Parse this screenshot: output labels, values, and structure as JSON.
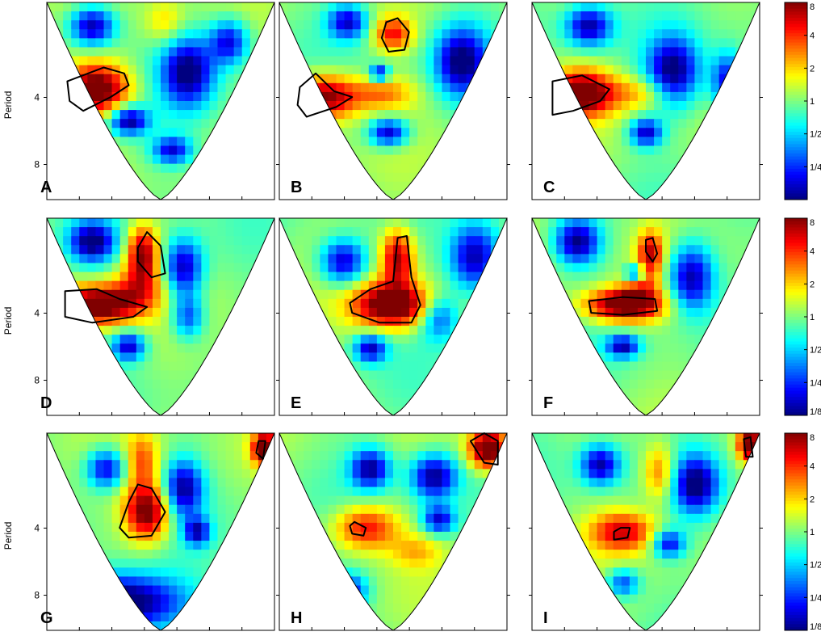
{
  "chart_data": {
    "type": "heatmap",
    "description_of_layout": "",
    "ylabel": "Period",
    "y_ticks": [
      "4",
      "8"
    ],
    "y_scale": "log2",
    "y_range": [
      1.5,
      11.5
    ],
    "colorbar": {
      "scale": "log2",
      "range": [
        0.125,
        8
      ],
      "ticks_full": [
        "1/8",
        "1/4",
        "1/2",
        "1",
        "2",
        "4",
        "8"
      ],
      "ticks_top_row": [
        "1/4",
        "1/2",
        "1",
        "2",
        "4",
        "8"
      ],
      "colormap": "jet"
    },
    "panels": [
      {
        "label": "A",
        "blobs": [
          {
            "x": 0.22,
            "y": 0.44,
            "sx": 0.1,
            "sy": 0.09,
            "v": 3.6
          },
          {
            "x": 0.52,
            "y": 0.1,
            "sx": 0.06,
            "sy": 0.08,
            "v": 1.0
          },
          {
            "x": 0.36,
            "y": 0.6,
            "sx": 0.06,
            "sy": 0.05,
            "v": -3.0
          },
          {
            "x": 0.62,
            "y": 0.35,
            "sx": 0.08,
            "sy": 0.12,
            "v": -3.0
          },
          {
            "x": 0.2,
            "y": 0.12,
            "sx": 0.07,
            "sy": 0.07,
            "v": -3.0
          },
          {
            "x": 0.8,
            "y": 0.2,
            "sx": 0.06,
            "sy": 0.08,
            "v": -2.5
          },
          {
            "x": 0.55,
            "y": 0.75,
            "sx": 0.06,
            "sy": 0.05,
            "v": -2.4
          }
        ],
        "contours": [
          [
            [
              0.09,
              0.4
            ],
            [
              0.25,
              0.33
            ],
            [
              0.34,
              0.36
            ],
            [
              0.36,
              0.42
            ],
            [
              0.28,
              0.48
            ],
            [
              0.16,
              0.55
            ],
            [
              0.1,
              0.5
            ]
          ]
        ]
      },
      {
        "label": "B",
        "blobs": [
          {
            "x": 0.2,
            "y": 0.48,
            "sx": 0.1,
            "sy": 0.08,
            "v": 3.2
          },
          {
            "x": 0.5,
            "y": 0.16,
            "sx": 0.06,
            "sy": 0.06,
            "v": 2.2
          },
          {
            "x": 0.45,
            "y": 0.46,
            "sx": 0.1,
            "sy": 0.06,
            "v": 1.5
          },
          {
            "x": 0.8,
            "y": 0.3,
            "sx": 0.08,
            "sy": 0.12,
            "v": -3.0
          },
          {
            "x": 0.48,
            "y": 0.66,
            "sx": 0.06,
            "sy": 0.05,
            "v": -2.8
          },
          {
            "x": 0.3,
            "y": 0.1,
            "sx": 0.06,
            "sy": 0.06,
            "v": -2.5
          },
          {
            "x": 0.44,
            "y": 0.36,
            "sx": 0.03,
            "sy": 0.03,
            "v": -2.6
          }
        ],
        "contours": [
          [
            [
              0.09,
              0.43
            ],
            [
              0.16,
              0.36
            ],
            [
              0.24,
              0.45
            ],
            [
              0.32,
              0.48
            ],
            [
              0.25,
              0.53
            ],
            [
              0.12,
              0.58
            ],
            [
              0.08,
              0.52
            ]
          ],
          [
            [
              0.45,
              0.18
            ],
            [
              0.47,
              0.1
            ],
            [
              0.52,
              0.08
            ],
            [
              0.57,
              0.15
            ],
            [
              0.55,
              0.24
            ],
            [
              0.48,
              0.25
            ]
          ]
        ]
      },
      {
        "label": "C",
        "blobs": [
          {
            "x": 0.22,
            "y": 0.46,
            "sx": 0.1,
            "sy": 0.08,
            "v": 3.5
          },
          {
            "x": 0.48,
            "y": 0.46,
            "sx": 0.1,
            "sy": 0.06,
            "v": 1.2
          },
          {
            "x": 0.62,
            "y": 0.35,
            "sx": 0.08,
            "sy": 0.12,
            "v": -3.0
          },
          {
            "x": 0.5,
            "y": 0.66,
            "sx": 0.05,
            "sy": 0.05,
            "v": -2.6
          },
          {
            "x": 0.25,
            "y": 0.12,
            "sx": 0.07,
            "sy": 0.07,
            "v": -2.8
          },
          {
            "x": 0.86,
            "y": 0.4,
            "sx": 0.05,
            "sy": 0.1,
            "v": -2.5
          }
        ],
        "contours": [
          [
            [
              0.09,
              0.4
            ],
            [
              0.22,
              0.37
            ],
            [
              0.34,
              0.44
            ],
            [
              0.3,
              0.5
            ],
            [
              0.18,
              0.55
            ],
            [
              0.09,
              0.57
            ]
          ]
        ]
      },
      {
        "label": "D",
        "blobs": [
          {
            "x": 0.22,
            "y": 0.44,
            "sx": 0.12,
            "sy": 0.07,
            "v": 3.6
          },
          {
            "x": 0.42,
            "y": 0.18,
            "sx": 0.05,
            "sy": 0.1,
            "v": 3.0
          },
          {
            "x": 0.4,
            "y": 0.36,
            "sx": 0.08,
            "sy": 0.08,
            "v": 1.5
          },
          {
            "x": 0.2,
            "y": 0.12,
            "sx": 0.07,
            "sy": 0.07,
            "v": -3.0
          },
          {
            "x": 0.6,
            "y": 0.25,
            "sx": 0.06,
            "sy": 0.1,
            "v": -2.8
          },
          {
            "x": 0.36,
            "y": 0.65,
            "sx": 0.05,
            "sy": 0.05,
            "v": -2.6
          },
          {
            "x": 0.62,
            "y": 0.5,
            "sx": 0.05,
            "sy": 0.08,
            "v": -2.0
          }
        ],
        "contours": [
          [
            [
              0.08,
              0.37
            ],
            [
              0.22,
              0.36
            ],
            [
              0.32,
              0.41
            ],
            [
              0.44,
              0.45
            ],
            [
              0.38,
              0.5
            ],
            [
              0.2,
              0.53
            ],
            [
              0.08,
              0.5
            ]
          ],
          [
            [
              0.4,
              0.15
            ],
            [
              0.44,
              0.07
            ],
            [
              0.5,
              0.14
            ],
            [
              0.52,
              0.28
            ],
            [
              0.46,
              0.3
            ],
            [
              0.4,
              0.22
            ]
          ]
        ]
      },
      {
        "label": "E",
        "blobs": [
          {
            "x": 0.5,
            "y": 0.44,
            "sx": 0.12,
            "sy": 0.08,
            "v": 3.8
          },
          {
            "x": 0.52,
            "y": 0.2,
            "sx": 0.05,
            "sy": 0.1,
            "v": 2.8
          },
          {
            "x": 0.86,
            "y": 0.2,
            "sx": 0.08,
            "sy": 0.12,
            "v": -3.0
          },
          {
            "x": 0.28,
            "y": 0.22,
            "sx": 0.07,
            "sy": 0.08,
            "v": -2.8
          },
          {
            "x": 0.4,
            "y": 0.66,
            "sx": 0.05,
            "sy": 0.05,
            "v": -2.6
          },
          {
            "x": 0.7,
            "y": 0.5,
            "sx": 0.06,
            "sy": 0.08,
            "v": -2.0
          }
        ],
        "contours": [
          [
            [
              0.31,
              0.43
            ],
            [
              0.4,
              0.36
            ],
            [
              0.5,
              0.32
            ],
            [
              0.52,
              0.1
            ],
            [
              0.56,
              0.09
            ],
            [
              0.58,
              0.3
            ],
            [
              0.62,
              0.44
            ],
            [
              0.58,
              0.53
            ],
            [
              0.44,
              0.53
            ],
            [
              0.32,
              0.48
            ]
          ]
        ]
      },
      {
        "label": "F",
        "blobs": [
          {
            "x": 0.4,
            "y": 0.44,
            "sx": 0.12,
            "sy": 0.06,
            "v": 3.6
          },
          {
            "x": 0.52,
            "y": 0.18,
            "sx": 0.04,
            "sy": 0.08,
            "v": 2.4
          },
          {
            "x": 0.48,
            "y": 0.36,
            "sx": 0.06,
            "sy": 0.07,
            "v": 1.2
          },
          {
            "x": 0.2,
            "y": 0.12,
            "sx": 0.07,
            "sy": 0.08,
            "v": -3.0
          },
          {
            "x": 0.7,
            "y": 0.3,
            "sx": 0.07,
            "sy": 0.12,
            "v": -3.0
          },
          {
            "x": 0.4,
            "y": 0.65,
            "sx": 0.05,
            "sy": 0.04,
            "v": -2.6
          },
          {
            "x": 0.45,
            "y": 0.28,
            "sx": 0.03,
            "sy": 0.03,
            "v": -2.5
          }
        ],
        "contours": [
          [
            [
              0.25,
              0.42
            ],
            [
              0.4,
              0.4
            ],
            [
              0.54,
              0.41
            ],
            [
              0.55,
              0.47
            ],
            [
              0.4,
              0.49
            ],
            [
              0.26,
              0.48
            ]
          ],
          [
            [
              0.5,
              0.11
            ],
            [
              0.53,
              0.1
            ],
            [
              0.55,
              0.18
            ],
            [
              0.53,
              0.22
            ],
            [
              0.5,
              0.17
            ]
          ]
        ]
      },
      {
        "label": "G",
        "blobs": [
          {
            "x": 0.44,
            "y": 0.4,
            "sx": 0.07,
            "sy": 0.1,
            "v": 3.4
          },
          {
            "x": 0.42,
            "y": 0.14,
            "sx": 0.05,
            "sy": 0.1,
            "v": 1.6
          },
          {
            "x": 0.96,
            "y": 0.08,
            "sx": 0.04,
            "sy": 0.06,
            "v": 3.5
          },
          {
            "x": 0.3,
            "y": 0.86,
            "sx": 0.2,
            "sy": 0.1,
            "v": -4.0
          },
          {
            "x": 0.26,
            "y": 0.18,
            "sx": 0.06,
            "sy": 0.07,
            "v": -2.6
          },
          {
            "x": 0.6,
            "y": 0.28,
            "sx": 0.06,
            "sy": 0.1,
            "v": -2.8
          },
          {
            "x": 0.66,
            "y": 0.5,
            "sx": 0.04,
            "sy": 0.05,
            "v": -2.4
          }
        ],
        "contours": [
          [
            [
              0.36,
              0.35
            ],
            [
              0.4,
              0.26
            ],
            [
              0.46,
              0.28
            ],
            [
              0.52,
              0.4
            ],
            [
              0.46,
              0.52
            ],
            [
              0.36,
              0.53
            ],
            [
              0.32,
              0.48
            ]
          ],
          [
            [
              0.92,
              0.1
            ],
            [
              0.93,
              0.04
            ],
            [
              0.96,
              0.04
            ],
            [
              0.95,
              0.13
            ]
          ]
        ]
      },
      {
        "label": "H",
        "blobs": [
          {
            "x": 0.38,
            "y": 0.48,
            "sx": 0.1,
            "sy": 0.08,
            "v": 2.4
          },
          {
            "x": 0.92,
            "y": 0.08,
            "sx": 0.06,
            "sy": 0.07,
            "v": 3.8
          },
          {
            "x": 0.6,
            "y": 0.6,
            "sx": 0.08,
            "sy": 0.06,
            "v": 1.0
          },
          {
            "x": 0.4,
            "y": 0.18,
            "sx": 0.06,
            "sy": 0.07,
            "v": -2.8
          },
          {
            "x": 0.68,
            "y": 0.22,
            "sx": 0.07,
            "sy": 0.08,
            "v": -3.0
          },
          {
            "x": 0.3,
            "y": 0.8,
            "sx": 0.06,
            "sy": 0.06,
            "v": -2.4
          },
          {
            "x": 0.7,
            "y": 0.44,
            "sx": 0.05,
            "sy": 0.05,
            "v": -2.5
          }
        ],
        "contours": [
          [
            [
              0.31,
              0.47
            ],
            [
              0.33,
              0.45
            ],
            [
              0.38,
              0.48
            ],
            [
              0.37,
              0.52
            ],
            [
              0.32,
              0.51
            ]
          ],
          [
            [
              0.84,
              0.04
            ],
            [
              0.9,
              0.0
            ],
            [
              0.96,
              0.04
            ],
            [
              0.96,
              0.16
            ],
            [
              0.9,
              0.15
            ]
          ]
        ]
      },
      {
        "label": "I",
        "blobs": [
          {
            "x": 0.4,
            "y": 0.5,
            "sx": 0.1,
            "sy": 0.07,
            "v": 2.4
          },
          {
            "x": 0.56,
            "y": 0.2,
            "sx": 0.05,
            "sy": 0.1,
            "v": 1.8
          },
          {
            "x": 0.96,
            "y": 0.06,
            "sx": 0.04,
            "sy": 0.06,
            "v": 3.6
          },
          {
            "x": 0.3,
            "y": 0.16,
            "sx": 0.06,
            "sy": 0.07,
            "v": -2.8
          },
          {
            "x": 0.72,
            "y": 0.26,
            "sx": 0.07,
            "sy": 0.1,
            "v": -3.0
          },
          {
            "x": 0.6,
            "y": 0.56,
            "sx": 0.05,
            "sy": 0.05,
            "v": -2.4
          },
          {
            "x": 0.4,
            "y": 0.76,
            "sx": 0.05,
            "sy": 0.05,
            "v": -2.0
          }
        ],
        "contours": [
          [
            [
              0.36,
              0.5
            ],
            [
              0.39,
              0.48
            ],
            [
              0.43,
              0.48
            ],
            [
              0.42,
              0.53
            ],
            [
              0.36,
              0.54
            ]
          ],
          [
            [
              0.93,
              0.03
            ],
            [
              0.96,
              0.02
            ],
            [
              0.97,
              0.12
            ],
            [
              0.94,
              0.12
            ]
          ]
        ]
      }
    ]
  }
}
